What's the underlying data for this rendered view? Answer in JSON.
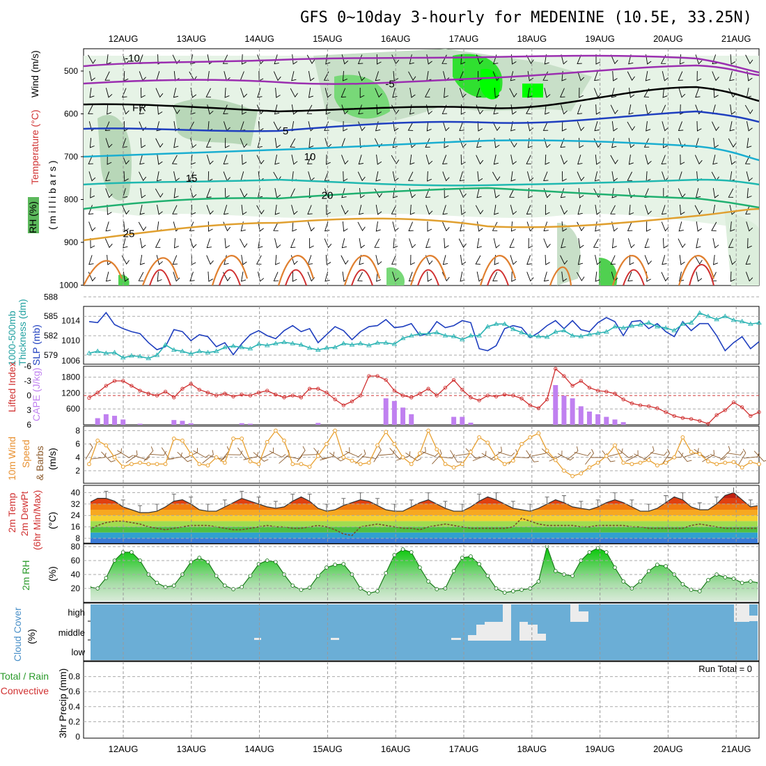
{
  "title": "GFS 0~10day 3-hourly for MEDENINE (10.5E, 33.25N)",
  "dates": [
    "12AUG",
    "13AUG",
    "14AUG",
    "15AUG",
    "16AUG",
    "17AUG",
    "18AUG",
    "19AUG",
    "20AUG",
    "21AUG"
  ],
  "labels": {
    "upper_rh": "RH (%)",
    "upper_temp": "Temperature (°C)",
    "upper_wind": "Wind (m/s)",
    "upper_unit": "( m i l l i b a r s )",
    "thk_1": "1000-500mb",
    "thk_2": "Thickness (dm)",
    "slp": "SLP (mb)",
    "li": "Lifted Index",
    "cape": "CAPE (J/kg)",
    "wind10_1": "10m Wind",
    "wind10_2": "Speed",
    "wind10_3": "& Barbs",
    "wind10_unit": "(m/s)",
    "temp_1": "2m Temp",
    "temp_2": "2m DewPt",
    "temp_3": "(6hr Min/Max)",
    "temp_unit": "(°C)",
    "rh_1": "2m RH",
    "rh_unit": "(%)",
    "cloud_1": "Cloud Cover",
    "cloud_unit": "(%)",
    "precip_1": "Total / Rain",
    "precip_2": "Convective",
    "precip_3": "3hr Precip (mm)",
    "run_total": "Run Total = 0"
  },
  "colors": {
    "slp": "#1f3fbf",
    "thickness": "#2ab3b3",
    "li": "#d03030",
    "cape": "#c080f0",
    "wind": "#e8a030",
    "rh": "#2a9a2a",
    "cloud": "#6baed6"
  },
  "chart_data": [
    {
      "panel": "upper-air cross-section",
      "type": "heatmap",
      "ylabel": "millibars",
      "yticks": [
        500,
        600,
        700,
        800,
        900,
        1000
      ],
      "isotherm_labels": [
        {
          "label": "-10",
          "level": 470
        },
        {
          "label": "-5",
          "level": 530
        },
        {
          "label": "FR",
          "level": 585
        },
        {
          "label": "5",
          "level": 640
        },
        {
          "label": "10",
          "level": 700
        },
        {
          "label": "15",
          "level": 750
        },
        {
          "label": "20",
          "level": 790
        },
        {
          "label": "25",
          "level": 880
        }
      ]
    },
    {
      "panel": "thickness-slp",
      "type": "line",
      "yticks_left": [
        579,
        582,
        585,
        588
      ],
      "yticks_right": [
        1006,
        1010,
        1014
      ],
      "series": [
        {
          "name": "SLP (mb)",
          "axis": "right",
          "values": [
            1013.8,
            1013.6,
            1015.6,
            1013.2,
            1012.4,
            1011.8,
            1011.4,
            1009.6,
            1008.2,
            1008.8,
            1012.2,
            1011.8,
            1010.0,
            1011.2,
            1010.8,
            1008.8,
            1009.6,
            1007.2,
            1009.4,
            1011.2,
            1012.0,
            1011.0,
            1010.4,
            1012.0,
            1013.0,
            1011.8,
            1012.4,
            1009.6,
            1011.2,
            1012.8,
            1012.0,
            1010.2,
            1011.8,
            1012.8,
            1013.0,
            1014.2,
            1012.6,
            1012.8,
            1013.4,
            1011.0,
            1011.4,
            1013.8,
            1012.6,
            1013.0,
            1014.0,
            1013.6,
            1008.4,
            1008.0,
            1009.0,
            1012.4,
            1013.0,
            1012.6,
            1010.6,
            1011.6,
            1013.0,
            1014.0,
            1012.4,
            1014.0,
            1012.2,
            1011.8,
            1013.6,
            1014.6,
            1013.8,
            1011.0,
            1013.8,
            1014.0,
            1012.4,
            1013.4,
            1011.8,
            1010.8,
            1013.8,
            1012.0,
            1013.4,
            1013.4,
            1011.0,
            1008.0,
            1009.6,
            1010.8,
            1008.4,
            1009.8
          ]
        },
        {
          "name": "1000-500mb Thickness (dm)",
          "axis": "left",
          "values": [
            579.3,
            579.6,
            579.3,
            579.4,
            578.6,
            578.9,
            578.8,
            578.5,
            579.0,
            580.6,
            579.8,
            579.6,
            579.2,
            579.6,
            579.4,
            579.6,
            580.2,
            580.4,
            580.2,
            580.0,
            580.7,
            580.5,
            580.8,
            581.0,
            580.8,
            580.6,
            580.1,
            579.8,
            580.1,
            580.2,
            580.8,
            580.6,
            580.8,
            580.5,
            580.9,
            580.9,
            580.7,
            581.6,
            582.0,
            582.3,
            582.3,
            582.5,
            582.0,
            581.9,
            581.4,
            582.0,
            582.0,
            583.4,
            583.8,
            583.8,
            583.0,
            582.5,
            582.0,
            581.9,
            581.8,
            582.6,
            582.8,
            582.0,
            581.9,
            582.2,
            582.4,
            582.6,
            583.4,
            583.2,
            583.5,
            583.7,
            584.0,
            583.4,
            583.2,
            582.8,
            583.8,
            584.0,
            585.5,
            585.0,
            584.5,
            585.0,
            584.4,
            584.2,
            583.8,
            584.0
          ]
        }
      ]
    },
    {
      "panel": "li-cape",
      "type": "bar",
      "yticks_left": [
        -6,
        -3,
        0,
        3,
        6
      ],
      "yticks_right": [
        600,
        1200,
        1800
      ],
      "series": [
        {
          "name": "Lifted Index",
          "type": "line",
          "values": [
            0.5,
            -0.6,
            -2.0,
            -3.0,
            -3.0,
            -2.0,
            -1.0,
            -0.4,
            0.0,
            -0.8,
            0.4,
            -1.4,
            -2.4,
            -1.2,
            -0.6,
            0.0,
            -0.4,
            0.2,
            -0.2,
            0.0,
            -0.6,
            -1.0,
            -0.2,
            0.4,
            0.0,
            0.4,
            -1.4,
            -1.4,
            -0.6,
            0.8,
            2.0,
            1.2,
            0.0,
            -4.0,
            -4.0,
            -3.2,
            -1.0,
            0.0,
            0.4,
            -0.4,
            -1.4,
            0.0,
            -1.6,
            -3.2,
            -1.2,
            0.4,
            1.0,
            0.0,
            0.2,
            -0.2,
            0.0,
            0.6,
            2.0,
            2.6,
            0.8,
            -5.5,
            -4.0,
            -2.0,
            -3.0,
            -1.6,
            -1.0,
            -0.8,
            -0.4,
            0.8,
            1.6,
            2.0,
            2.2,
            2.6,
            3.4,
            4.2,
            4.6,
            4.8,
            5.2,
            5.8,
            4.0,
            3.0,
            1.4,
            2.4,
            4.2,
            3.4
          ]
        },
        {
          "name": "CAPE (J/kg)",
          "type": "bar",
          "values": [
            0,
            250,
            400,
            340,
            200,
            0,
            40,
            0,
            0,
            0,
            180,
            150,
            60,
            0,
            0,
            0,
            0,
            0,
            60,
            40,
            0,
            0,
            0,
            0,
            0,
            0,
            0,
            70,
            0,
            0,
            0,
            0,
            0,
            0,
            0,
            1000,
            900,
            650,
            400,
            0,
            0,
            0,
            0,
            300,
            300,
            80,
            0,
            0,
            0,
            0,
            0,
            0,
            0,
            0,
            0,
            1500,
            1100,
            1000,
            700,
            500,
            400,
            300,
            200,
            100,
            0,
            0,
            0,
            0,
            0,
            0,
            0,
            0,
            0,
            0,
            0,
            0,
            0,
            0,
            0,
            0
          ]
        }
      ]
    },
    {
      "panel": "10m-wind",
      "type": "line",
      "yticks": [
        2,
        4,
        6,
        8
      ],
      "series": [
        {
          "name": "Speed",
          "values": [
            3.0,
            6.5,
            5.8,
            4.0,
            2.6,
            3.0,
            3.2,
            3.0,
            3.0,
            3.0,
            6.8,
            6.5,
            4.5,
            3.0,
            2.8,
            4.0,
            3.2,
            6.8,
            6.8,
            3.4,
            3.0,
            6.3,
            8.0,
            6.5,
            3.0,
            3.0,
            2.6,
            4.2,
            6.0,
            8.0,
            4.0,
            3.5,
            3.0,
            3.2,
            5.8,
            7.8,
            6.0,
            4.0,
            3.0,
            4.6,
            8.0,
            5.2,
            3.0,
            2.5,
            3.0,
            4.8,
            7.0,
            6.2,
            4.0,
            3.0,
            3.5,
            6.0,
            7.0,
            7.6,
            5.0,
            3.6,
            2.0,
            1.2,
            1.6,
            2.5,
            3.2,
            4.2,
            5.8,
            3.2,
            3.0,
            3.2,
            3.6,
            2.8,
            3.2,
            4.0,
            7.0,
            4.8,
            4.5,
            3.4,
            3.0,
            3.2,
            3.3,
            2.5,
            3.3,
            3.0
          ]
        }
      ]
    },
    {
      "panel": "2m-temperature",
      "type": "area",
      "yticks": [
        8,
        16,
        24,
        32,
        40
      ],
      "series": [
        {
          "name": "2m Temp",
          "values": [
            33,
            36,
            36,
            34,
            30,
            28,
            26,
            26,
            27,
            30,
            34,
            35,
            32,
            28,
            27,
            27,
            30,
            33,
            36,
            34,
            32,
            30,
            29,
            30,
            34,
            37,
            34,
            29,
            27,
            28,
            31,
            33,
            35,
            34,
            31,
            28,
            27,
            27,
            30,
            33,
            35,
            32,
            29,
            27,
            27,
            30,
            34,
            37,
            35,
            32,
            29,
            28,
            27,
            29,
            32,
            35,
            33,
            30,
            29,
            28,
            30,
            33,
            35,
            33,
            30,
            27,
            27,
            29,
            33,
            37,
            35,
            30,
            28,
            28,
            32,
            38,
            40,
            35,
            30,
            31
          ]
        },
        {
          "name": "2m DewPt",
          "values": [
            14,
            17,
            19,
            20,
            20,
            19,
            18,
            16,
            15,
            14,
            15,
            16,
            17,
            17,
            17,
            16,
            15,
            14,
            14,
            15,
            16,
            17,
            16,
            16,
            15,
            15,
            16,
            17,
            16,
            14,
            11,
            10,
            16,
            17,
            18,
            17,
            16,
            15,
            15,
            14,
            16,
            17,
            18,
            17,
            16,
            15,
            15,
            15,
            15,
            15,
            16,
            22,
            20,
            18,
            17,
            17,
            17,
            17,
            16,
            16,
            17,
            17,
            17,
            17,
            16,
            16,
            15,
            15,
            15,
            15,
            15,
            17,
            18,
            17,
            16,
            15,
            15,
            15,
            15,
            15
          ]
        }
      ]
    },
    {
      "panel": "2m-rh",
      "type": "area",
      "yticks": [
        20,
        40,
        60,
        80
      ],
      "series": [
        {
          "name": "2m RH",
          "values": [
            22,
            20,
            35,
            60,
            72,
            72,
            60,
            40,
            28,
            22,
            24,
            40,
            58,
            64,
            58,
            38,
            24,
            19,
            22,
            38,
            55,
            60,
            58,
            40,
            24,
            18,
            21,
            38,
            50,
            54,
            55,
            40,
            20,
            13,
            16,
            42,
            68,
            76,
            72,
            50,
            30,
            19,
            20,
            45,
            64,
            66,
            55,
            38,
            20,
            14,
            16,
            18,
            20,
            30,
            80,
            45,
            40,
            38,
            60,
            72,
            78,
            72,
            50,
            30,
            20,
            30,
            45,
            54,
            52,
            40,
            26,
            18,
            16,
            32,
            40,
            36,
            34,
            28,
            30,
            28
          ]
        }
      ]
    },
    {
      "panel": "cloud-cover",
      "type": "bar",
      "categories": [
        "high",
        "middle",
        "low"
      ]
    },
    {
      "panel": "precip",
      "type": "bar",
      "yticks": [
        0,
        0.2,
        0.4,
        0.6,
        0.8
      ],
      "values": []
    }
  ]
}
